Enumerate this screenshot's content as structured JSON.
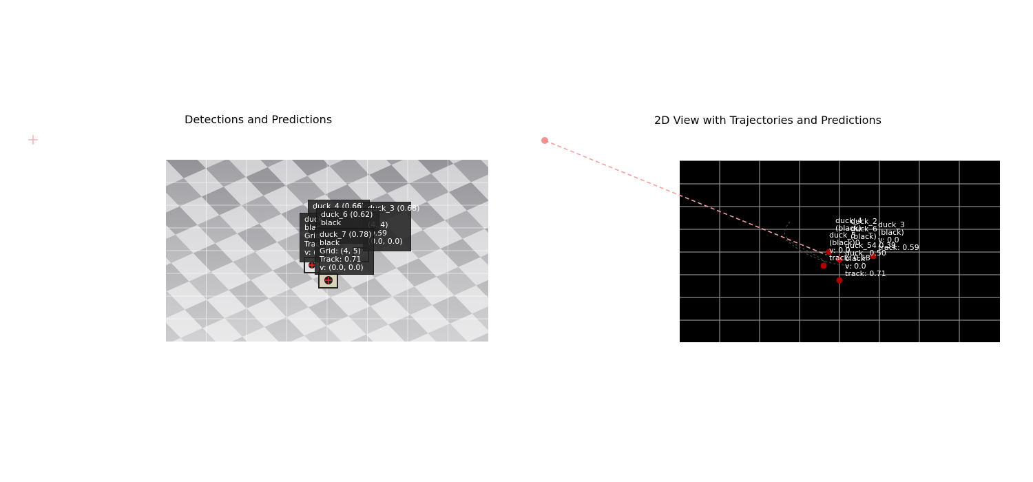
{
  "left_panel": {
    "title": "Detections and Predictions",
    "detections": [
      {
        "id": "duck_4",
        "text": "duck_4 (0.66)\n\n\n\n\n\n",
        "box": "bbox"
      },
      {
        "id": "duck_3",
        "text": "duck_3 (0.68)\n\n(4, 4)\n 0.59\n(0.0, 0.0)"
      },
      {
        "id": "duck_5",
        "text": "duck_\nblac\nGrid\nTrac\nv: ("
      },
      {
        "id": "duck_6",
        "text": "duck_6 (0.62)\nblack"
      },
      {
        "id": "duck_7",
        "text": "duck_7 (0.78)\nblack\nGrid: (4, 5)\nTrack: 0.71\nv: (0.0, 0.0)"
      }
    ]
  },
  "right_panel": {
    "title": "2D View with Trajectories and Predictions",
    "labels": [
      {
        "id": "duck_4",
        "text": "duck_4\n(black)"
      },
      {
        "id": "duck_2",
        "text": "duck_2\nduck_6\n(black)"
      },
      {
        "id": "duck_3",
        "text": "duck_3\n(black)\nv: 0.0\ntrack: 0.59"
      },
      {
        "id": "duck_5",
        "text": "duck_5\n(black)0\nv: 0.0\ntrack: 0.58"
      },
      {
        "id": "mid",
        "text": "duck_54 0.39\nduck_ 0.50"
      },
      {
        "id": "duck_7",
        "text": "black\nv: 0.0\ntrack: 0.71"
      }
    ]
  },
  "colors": {
    "prediction": "#f08080",
    "track_point": "#c00000",
    "grid_light": "#ffffff",
    "grid_dark": "#888888"
  }
}
